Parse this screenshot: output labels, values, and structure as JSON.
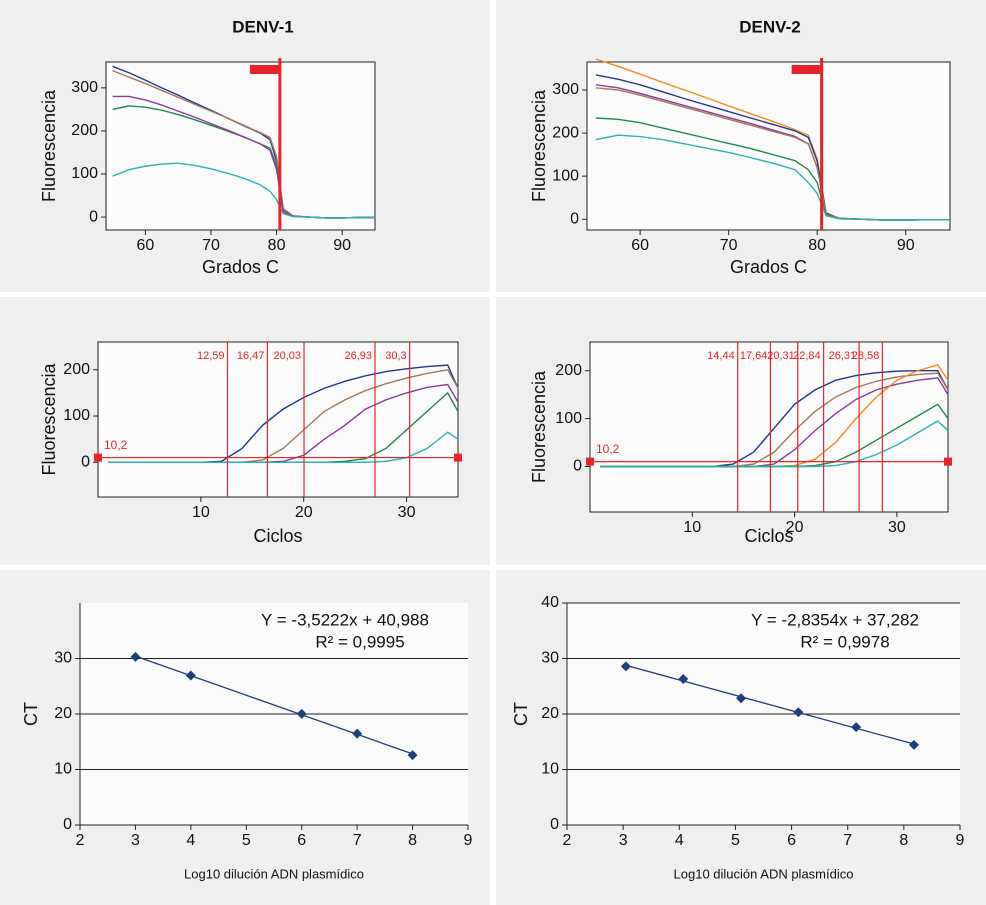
{
  "chart_data": [
    {
      "type": "line",
      "title": "DENV-1",
      "xlabel": "Grados C",
      "ylabel": "Fluorescencia",
      "xlim": [
        54,
        95
      ],
      "xticks": [
        60,
        70,
        80,
        90
      ],
      "ylim": [
        -30,
        360
      ],
      "yticks": [
        0,
        100,
        200,
        300
      ],
      "x": [
        55,
        57.5,
        60,
        62.5,
        65,
        67.5,
        70,
        72.5,
        75,
        77.5,
        79,
        80,
        81,
        82.5,
        85,
        87.5,
        90,
        92.5,
        95
      ],
      "threshold_x": 80.5,
      "threshold_color": "#e8232a",
      "series": [
        {
          "color": "#1f3a8a",
          "values": [
            350,
            335,
            318,
            300,
            283,
            265,
            248,
            230,
            212,
            195,
            180,
            130,
            15,
            2,
            0,
            -2,
            -2,
            -1,
            -1
          ]
        },
        {
          "color": "#a57a5c",
          "values": [
            340,
            325,
            310,
            294,
            278,
            262,
            246,
            230,
            213,
            196,
            185,
            140,
            20,
            3,
            0,
            -2,
            -2,
            -1,
            -1
          ]
        },
        {
          "color": "#1e8a4c",
          "values": [
            250,
            258,
            255,
            248,
            238,
            226,
            213,
            200,
            186,
            170,
            160,
            120,
            15,
            2,
            0,
            -2,
            -2,
            -1,
            -1
          ]
        },
        {
          "color": "#8e3a9e",
          "values": [
            280,
            280,
            272,
            260,
            246,
            232,
            217,
            202,
            186,
            170,
            155,
            110,
            12,
            2,
            0,
            -2,
            -2,
            -1,
            -1
          ]
        },
        {
          "color": "#2ab3b3",
          "values": [
            95,
            110,
            118,
            123,
            125,
            120,
            112,
            102,
            90,
            75,
            60,
            40,
            8,
            1,
            0,
            -2,
            -2,
            -1,
            -1
          ]
        }
      ]
    },
    {
      "type": "line",
      "title": "DENV-2",
      "xlabel": "Grados C",
      "ylabel": "Fluorescencia",
      "xlim": [
        54,
        95
      ],
      "xticks": [
        60,
        70,
        80,
        90
      ],
      "ylim": [
        -25,
        365
      ],
      "yticks": [
        0,
        100,
        200,
        300
      ],
      "x": [
        55,
        57.5,
        60,
        62.5,
        65,
        67.5,
        70,
        72.5,
        75,
        77.5,
        79,
        80,
        81,
        82.5,
        85,
        87.5,
        90,
        92.5,
        95
      ],
      "threshold_x": 80.5,
      "threshold_color": "#e8232a",
      "series": [
        {
          "color": "#f28c1e",
          "values": [
            372,
            355,
            337,
            318,
            300,
            282,
            263,
            245,
            227,
            208,
            195,
            140,
            15,
            2,
            0,
            -2,
            -2,
            -1,
            -1
          ]
        },
        {
          "color": "#1f3a8a",
          "values": [
            335,
            325,
            312,
            296,
            280,
            265,
            250,
            235,
            220,
            205,
            190,
            135,
            14,
            2,
            0,
            -2,
            -2,
            -1,
            -1
          ]
        },
        {
          "color": "#8e3a9e",
          "values": [
            312,
            305,
            292,
            278,
            264,
            250,
            236,
            222,
            207,
            192,
            175,
            120,
            12,
            2,
            0,
            -2,
            -2,
            -1,
            -1
          ]
        },
        {
          "color": "#a57a5c",
          "values": [
            305,
            300,
            288,
            274,
            260,
            246,
            232,
            218,
            204,
            190,
            175,
            120,
            12,
            2,
            0,
            -2,
            -2,
            -1,
            -1
          ]
        },
        {
          "color": "#1e8a4c",
          "values": [
            235,
            232,
            224,
            212,
            200,
            188,
            176,
            164,
            150,
            136,
            115,
            85,
            10,
            1,
            0,
            -2,
            -2,
            -1,
            -1
          ]
        },
        {
          "color": "#2ab3b3",
          "values": [
            185,
            195,
            192,
            185,
            175,
            165,
            155,
            143,
            130,
            115,
            85,
            60,
            8,
            1,
            0,
            -2,
            -2,
            -1,
            -1
          ]
        }
      ]
    },
    {
      "type": "line",
      "xlabel": "Ciclos",
      "ylabel": "Fluorescencia",
      "xlim": [
        0,
        35
      ],
      "xticks": [
        10,
        20,
        30
      ],
      "ylim": [
        -75,
        260
      ],
      "yticks": [
        0,
        100,
        200
      ],
      "x": [
        1,
        5,
        10,
        12,
        14,
        16,
        18,
        20,
        22,
        24,
        26,
        28,
        30,
        32,
        34,
        35
      ],
      "threshold_color": "#e8232a",
      "threshold_y": {
        "value": 10.2,
        "label": "10,2"
      },
      "thresholds_x": [
        {
          "value": 12.59,
          "label": "12,59"
        },
        {
          "value": 16.47,
          "label": "16,47"
        },
        {
          "value": 20.03,
          "label": "20,03"
        },
        {
          "value": 26.93,
          "label": "26,93"
        },
        {
          "value": 30.3,
          "label": "30,3"
        }
      ],
      "series": [
        {
          "color": "#1f3a8a",
          "values": [
            0,
            0,
            0,
            2,
            30,
            80,
            115,
            140,
            160,
            175,
            187,
            196,
            202,
            207,
            210,
            160
          ]
        },
        {
          "color": "#a57a5c",
          "values": [
            0,
            0,
            0,
            0,
            0,
            5,
            30,
            70,
            110,
            135,
            155,
            170,
            182,
            192,
            200,
            160
          ]
        },
        {
          "color": "#8e3a9e",
          "values": [
            0,
            0,
            0,
            0,
            0,
            0,
            2,
            15,
            50,
            80,
            115,
            135,
            150,
            162,
            168,
            130
          ]
        },
        {
          "color": "#1e8a4c",
          "values": [
            0,
            0,
            0,
            0,
            0,
            0,
            0,
            0,
            0,
            2,
            8,
            30,
            70,
            110,
            150,
            110
          ]
        },
        {
          "color": "#2ab3b3",
          "values": [
            0,
            0,
            0,
            0,
            0,
            0,
            0,
            0,
            0,
            0,
            0,
            2,
            10,
            30,
            65,
            50
          ]
        }
      ]
    },
    {
      "type": "line",
      "xlabel": "Ciclos",
      "ylabel": "Fluorescencia",
      "xlim": [
        0,
        35
      ],
      "xticks": [
        10,
        20,
        30
      ],
      "ylim": [
        -95,
        260
      ],
      "yticks": [
        0,
        100,
        200
      ],
      "x": [
        1,
        5,
        10,
        12,
        14,
        16,
        18,
        20,
        22,
        24,
        26,
        28,
        30,
        32,
        34,
        35
      ],
      "threshold_color": "#e8232a",
      "threshold_y": {
        "value": 10.2,
        "label": "10,2"
      },
      "thresholds_x": [
        {
          "value": 14.44,
          "label": "14,44"
        },
        {
          "value": 17.64,
          "label": "17,64"
        },
        {
          "value": 20.31,
          "label": "20,31"
        },
        {
          "value": 22.84,
          "label": "22,84"
        },
        {
          "value": 26.31,
          "label": "26,31"
        },
        {
          "value": 28.58,
          "label": "28,58"
        }
      ],
      "series": [
        {
          "color": "#1f3a8a",
          "values": [
            0,
            0,
            0,
            0,
            5,
            30,
            80,
            130,
            160,
            180,
            190,
            196,
            199,
            200,
            200,
            160
          ]
        },
        {
          "color": "#a57a5c",
          "values": [
            0,
            0,
            0,
            0,
            0,
            5,
            30,
            75,
            115,
            145,
            165,
            178,
            187,
            192,
            195,
            160
          ]
        },
        {
          "color": "#8e3a9e",
          "values": [
            0,
            0,
            0,
            0,
            0,
            0,
            5,
            35,
            75,
            110,
            140,
            160,
            172,
            180,
            185,
            150
          ]
        },
        {
          "color": "#f28c1e",
          "values": [
            0,
            0,
            0,
            0,
            0,
            0,
            0,
            2,
            15,
            50,
            100,
            145,
            180,
            200,
            212,
            180
          ]
        },
        {
          "color": "#1e8a4c",
          "values": [
            0,
            0,
            0,
            0,
            0,
            0,
            0,
            0,
            2,
            10,
            30,
            55,
            80,
            105,
            130,
            100
          ]
        },
        {
          "color": "#2ab3b3",
          "values": [
            0,
            0,
            0,
            0,
            0,
            0,
            0,
            0,
            0,
            2,
            10,
            25,
            45,
            70,
            95,
            75
          ]
        }
      ]
    },
    {
      "type": "scatter",
      "xlabel": "Log10 dilución ADN plasmídico",
      "ylabel": "CT",
      "xlim": [
        2,
        9
      ],
      "xticks": [
        2,
        3,
        4,
        5,
        6,
        7,
        8,
        9
      ],
      "ylim": [
        0,
        40
      ],
      "yticks": [
        0,
        10,
        20,
        30
      ],
      "grid": true,
      "trendline": true,
      "equation": "Y = -3,5222x + 40,988",
      "r2": "R² = 0,9995",
      "series": [
        {
          "color": "#1f3f7a",
          "x": [
            3,
            4,
            6,
            7,
            8
          ],
          "values": [
            30.3,
            26.93,
            20.03,
            16.47,
            12.59
          ]
        }
      ]
    },
    {
      "type": "scatter",
      "xlabel": "Log10 dilución ADN plasmídico",
      "ylabel": "CT",
      "xlim": [
        2,
        9
      ],
      "xticks": [
        2,
        3,
        4,
        5,
        6,
        7,
        8,
        9
      ],
      "ylim": [
        0,
        40
      ],
      "yticks": [
        0,
        10,
        20,
        30,
        40
      ],
      "grid": true,
      "trendline": true,
      "equation": "Y = -2,8354x + 37,282",
      "r2": "R² = 0,9978",
      "series": [
        {
          "color": "#1f3f7a",
          "x": [
            3.05,
            4.07,
            5.1,
            6.12,
            7.15,
            8.18
          ],
          "values": [
            28.58,
            26.31,
            22.84,
            20.31,
            17.64,
            14.44
          ]
        }
      ]
    }
  ]
}
